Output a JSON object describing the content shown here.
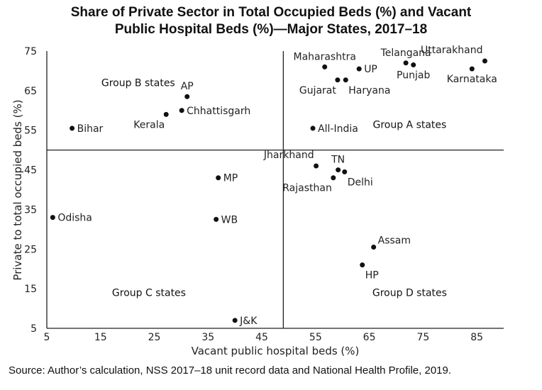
{
  "title_lines": [
    "Share of Private Sector in Total Occupied Beds (%) and Vacant",
    "Public Hospital Beds (%)—Major States, 2017–18"
  ],
  "source": "Source: Author’s calculation, NSS 2017–18 unit record data and National Health Profile, 2019.",
  "chart_data": {
    "type": "scatter",
    "title": "Share of Private Sector in Total Occupied Beds (%) and Vacant Public Hospital Beds (%)—Major States, 2017–18",
    "xlabel": "Vacant public hospital beds (%)",
    "ylabel": "Private to total occupied beds (%)",
    "xlim": [
      5,
      90
    ],
    "ylim": [
      5,
      75
    ],
    "xticks": [
      5,
      15,
      25,
      35,
      45,
      55,
      65,
      75,
      85
    ],
    "yticks": [
      5,
      15,
      25,
      35,
      45,
      55,
      65,
      75
    ],
    "reference_lines": {
      "x": 49,
      "y": 50
    },
    "points": [
      {
        "label": "Bihar",
        "x": 9.7,
        "y": 55.5,
        "pos": "right"
      },
      {
        "label": "Kerala",
        "x": 27.2,
        "y": 59,
        "pos": "below-left"
      },
      {
        "label": "Chhattisgarh",
        "x": 30.1,
        "y": 60,
        "pos": "right"
      },
      {
        "label": "AP",
        "x": 31.1,
        "y": 63.5,
        "pos": "above"
      },
      {
        "label": "Odisha",
        "x": 6.1,
        "y": 33,
        "pos": "right"
      },
      {
        "label": "MP",
        "x": 36.9,
        "y": 43,
        "pos": "right"
      },
      {
        "label": "WB",
        "x": 36.5,
        "y": 32.5,
        "pos": "right"
      },
      {
        "label": "J&K",
        "x": 40,
        "y": 7,
        "pos": "right"
      },
      {
        "label": "All-India",
        "x": 54.5,
        "y": 55.5,
        "pos": "right"
      },
      {
        "label": "Maharashtra",
        "x": 56.7,
        "y": 71,
        "pos": "above"
      },
      {
        "label": "Gujarat",
        "x": 59.1,
        "y": 67.7,
        "pos": "below-left"
      },
      {
        "label": "Haryana",
        "x": 60.6,
        "y": 67.7,
        "pos": "below-right"
      },
      {
        "label": "UP",
        "x": 63.1,
        "y": 70.5,
        "pos": "right"
      },
      {
        "label": "Telangana",
        "x": 71.8,
        "y": 72,
        "pos": "above"
      },
      {
        "label": "Punjab",
        "x": 73.2,
        "y": 71.5,
        "pos": "below"
      },
      {
        "label": "Uttarakhand",
        "x": 86.5,
        "y": 72.5,
        "pos": "above-left"
      },
      {
        "label": "Karnataka",
        "x": 84.1,
        "y": 70.5,
        "pos": "below"
      },
      {
        "label": "Jharkhand",
        "x": 55.1,
        "y": 46,
        "pos": "above-left"
      },
      {
        "label": "TN",
        "x": 59.2,
        "y": 45,
        "pos": "above"
      },
      {
        "label": "Delhi",
        "x": 60.4,
        "y": 44.5,
        "pos": "below-right"
      },
      {
        "label": "Rajasthan",
        "x": 58.3,
        "y": 43,
        "pos": "below-left"
      },
      {
        "label": "Assam",
        "x": 65.8,
        "y": 25.5,
        "pos": "above-right"
      },
      {
        "label": "HP",
        "x": 63.7,
        "y": 21,
        "pos": "below-right"
      }
    ],
    "group_labels": [
      {
        "text": "Group B states",
        "x": 22,
        "y": 67
      },
      {
        "text": "Group A states",
        "x": 72.5,
        "y": 56.5
      },
      {
        "text": "Group C states",
        "x": 24,
        "y": 14
      },
      {
        "text": "Group D states",
        "x": 72.5,
        "y": 14
      }
    ]
  }
}
